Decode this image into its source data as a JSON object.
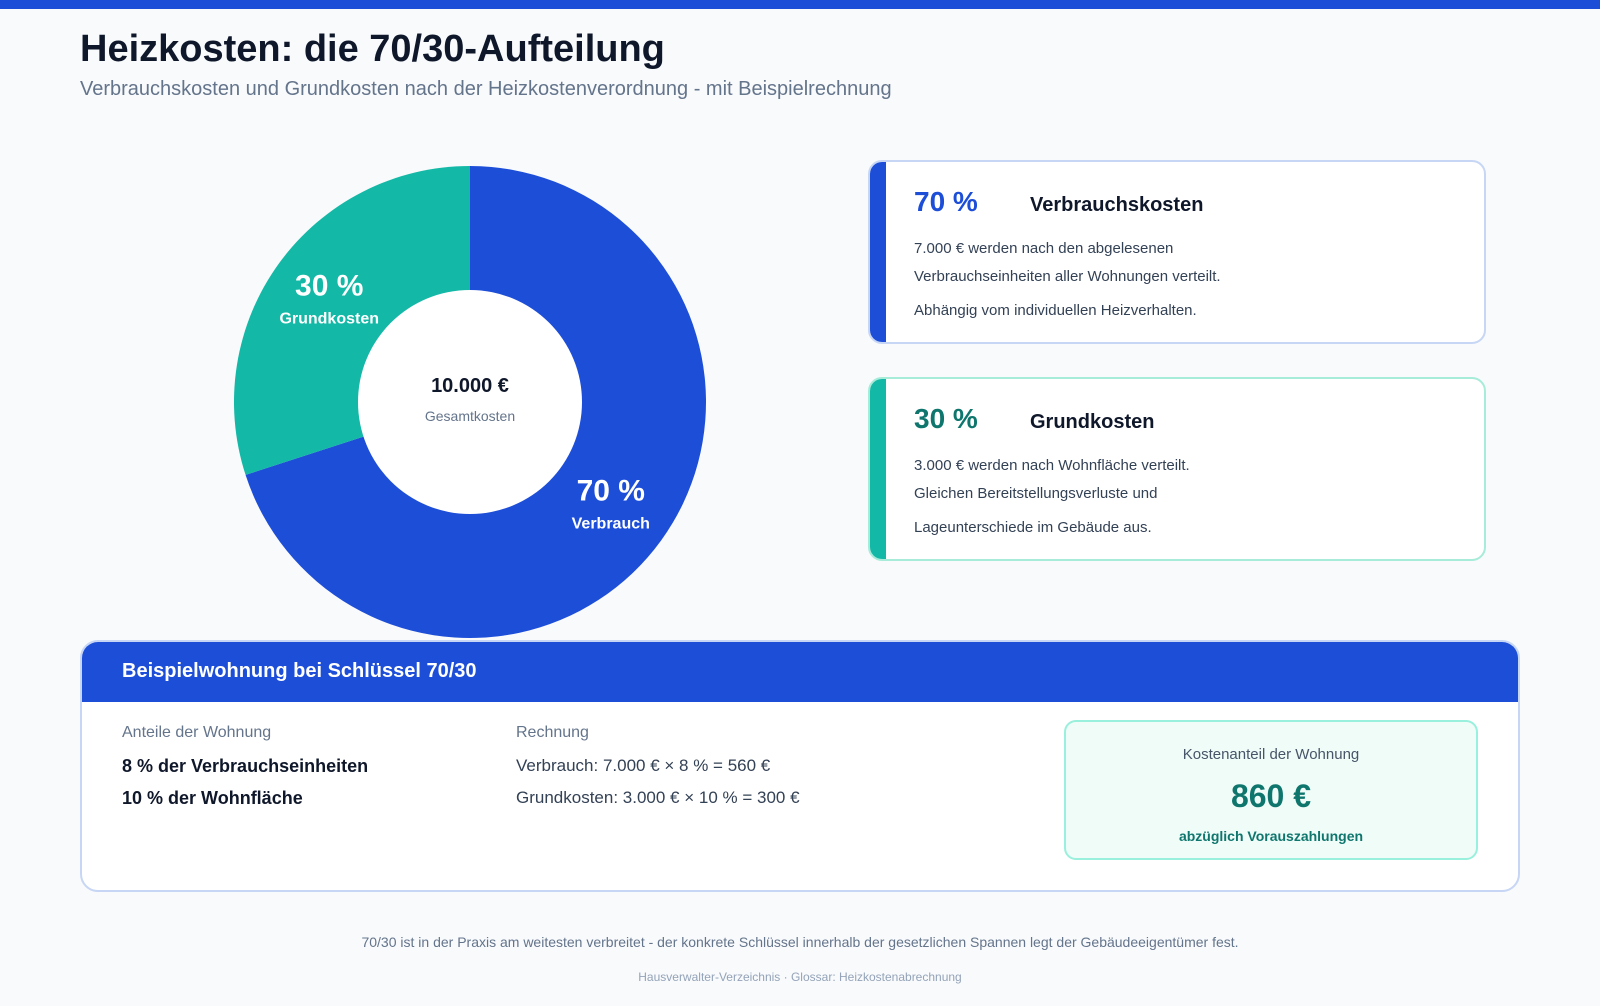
{
  "header": {
    "title": "Heizkosten: die 70/30-Aufteilung",
    "subtitle": "Verbrauchskosten und Grundkosten nach der Heizkostenverordnung - mit Beispielrechnung"
  },
  "colors": {
    "accent_blue": "#1d4ed8",
    "accent_teal": "#14b8a6",
    "teal_dark": "#0f766e"
  },
  "chart_data": {
    "type": "pie",
    "title": "",
    "categories": [
      "Verbrauch",
      "Grundkosten"
    ],
    "values": [
      70,
      30
    ],
    "value_labels": [
      "70 %",
      "30 %"
    ],
    "colors": [
      "#1d4ed8",
      "#14b8a6"
    ],
    "center_value": "10.000 €",
    "center_label": "Gesamtkosten"
  },
  "cards": [
    {
      "percent": "70 %",
      "heading": "Verbrauchskosten",
      "lines": [
        "7.000 € werden nach den abgelesenen",
        "Verbrauchseinheiten aller Wohnungen verteilt.",
        "Abhängig vom individuellen Heizverhalten."
      ]
    },
    {
      "percent": "30 %",
      "heading": "Grundkosten",
      "lines": [
        "3.000 € werden nach Wohnfläche verteilt.",
        "Gleichen Bereitstellungsverluste und",
        "Lageunterschiede im Gebäude aus."
      ]
    }
  ],
  "example": {
    "title": "Beispielwohnung bei Schlüssel 70/30",
    "shares_label": "Anteile der Wohnung",
    "shares": [
      "8 % der Verbrauchseinheiten",
      "10 % der Wohnfläche"
    ],
    "calc_label": "Rechnung",
    "calc": [
      "Verbrauch: 7.000 € × 8 % = 560 €",
      "Grundkosten: 3.000 € × 10 % = 300 €"
    ],
    "result_label": "Kostenanteil der Wohnung",
    "result_value": "860 €",
    "result_note": "abzüglich Vorauszahlungen"
  },
  "footer": {
    "note": "70/30 ist in der Praxis am weitesten verbreitet - der konkrete Schlüssel innerhalb der gesetzlichen Spannen legt der Gebäudeeigentümer fest.",
    "source": "Hausverwalter-Verzeichnis · Glossar: Heizkostenabrechnung"
  }
}
